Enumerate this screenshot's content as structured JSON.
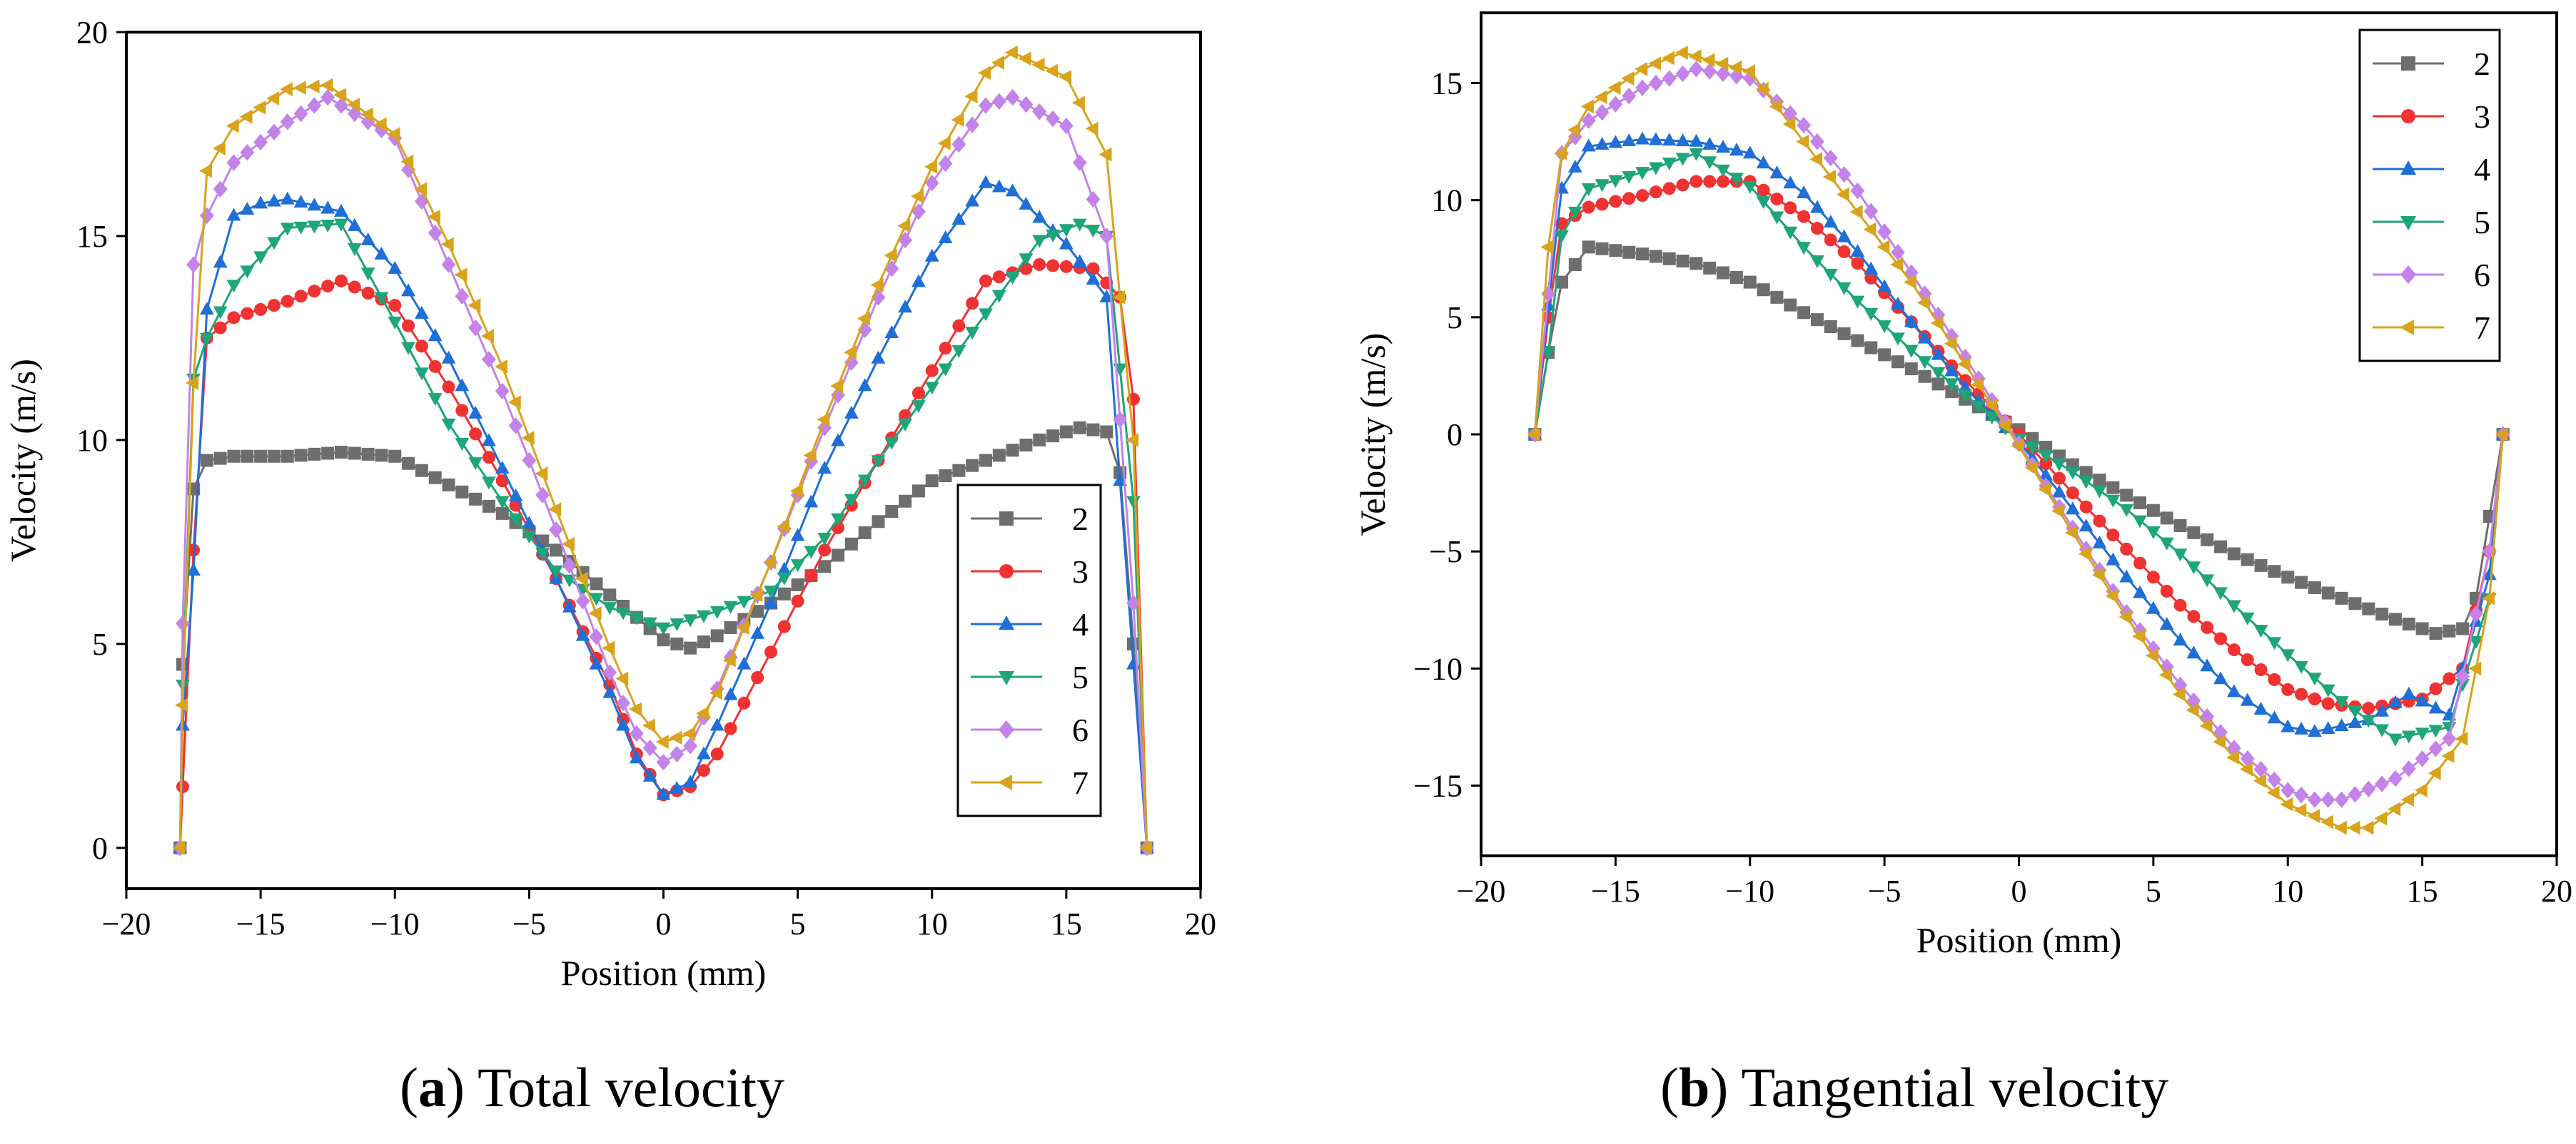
{
  "figure": {
    "subfigures": [
      {
        "tag": "a",
        "title": "Total velocity"
      },
      {
        "tag": "b",
        "title": "Tangential velocity"
      }
    ]
  },
  "chart_data": [
    {
      "type": "line",
      "title": "Total velocity",
      "xlabel": "Position (mm)",
      "ylabel": "Velocity (m/s)",
      "xlim": [
        -20,
        20
      ],
      "ylim": [
        -1,
        20
      ],
      "xticks": [
        -20,
        -15,
        -10,
        -5,
        0,
        5,
        10,
        15,
        20
      ],
      "yticks": [
        0,
        5,
        10,
        15,
        20
      ],
      "legend_position": "center-right",
      "series": [
        {
          "name": "2",
          "color": "#6e6e6e",
          "marker": "square",
          "x": [
            -18,
            -17.9,
            -17.5,
            -17,
            -16,
            -14,
            -12,
            -10,
            -8,
            -6,
            -4,
            -2,
            0,
            1,
            2,
            4,
            6,
            8,
            10,
            12,
            14,
            15.5,
            16.5,
            17,
            17.5,
            18
          ],
          "y": [
            0,
            4.5,
            8.8,
            9.5,
            9.6,
            9.6,
            9.7,
            9.6,
            8.9,
            8.2,
            7.3,
            6.2,
            5.1,
            4.9,
            5.2,
            6.0,
            6.9,
            8.0,
            9.0,
            9.5,
            10.0,
            10.3,
            10.2,
            9.2,
            5.0,
            0
          ]
        },
        {
          "name": "3",
          "color": "#f03232",
          "marker": "circle",
          "x": [
            -18,
            -17.9,
            -17.5,
            -17,
            -16,
            -14,
            -12,
            -10,
            -8,
            -6,
            -4,
            -2,
            -1,
            0,
            1,
            2,
            4,
            6,
            8,
            10,
            12,
            14,
            16,
            17,
            17.5,
            18
          ],
          "y": [
            0,
            1.5,
            7.3,
            12.5,
            13.0,
            13.4,
            13.9,
            13.3,
            11.3,
            9.0,
            6.6,
            4.0,
            2.3,
            1.3,
            1.5,
            2.3,
            4.8,
            7.3,
            9.5,
            11.7,
            13.9,
            14.3,
            14.2,
            13.5,
            11.0,
            0
          ]
        },
        {
          "name": "4",
          "color": "#1f6fd6",
          "marker": "triangle-up",
          "x": [
            -18,
            -17.9,
            -17.5,
            -17,
            -16,
            -15,
            -14,
            -12,
            -10,
            -8,
            -6,
            -4,
            -2,
            -1,
            0,
            1,
            2,
            4,
            6,
            8,
            10,
            12,
            13,
            15,
            16.5,
            17.5,
            18
          ],
          "y": [
            0,
            3.0,
            6.8,
            13.2,
            15.5,
            15.8,
            15.9,
            15.6,
            14.2,
            12.0,
            9.3,
            6.6,
            3.8,
            2.2,
            1.3,
            1.6,
            3.0,
            6.0,
            9.3,
            12.0,
            14.5,
            16.3,
            16.1,
            14.8,
            13.5,
            4.5,
            0
          ]
        },
        {
          "name": "5",
          "color": "#1fa57a",
          "marker": "triangle-down",
          "x": [
            -18,
            -17.9,
            -17.5,
            -17,
            -16,
            -14,
            -12,
            -10,
            -8,
            -6,
            -4,
            -2,
            0,
            2,
            4,
            6,
            8,
            10,
            12,
            14,
            15.5,
            16.5,
            17.5,
            18
          ],
          "y": [
            0,
            4.0,
            11.5,
            12.5,
            13.8,
            15.2,
            15.3,
            12.9,
            10.4,
            8.5,
            6.8,
            5.9,
            5.4,
            5.8,
            6.3,
            7.6,
            9.5,
            11.3,
            13.1,
            14.9,
            15.3,
            15.0,
            8.5,
            0
          ]
        },
        {
          "name": "6",
          "color": "#c383e8",
          "marker": "diamond",
          "x": [
            -18,
            -17.9,
            -17.5,
            -17,
            -16,
            -14,
            -12.5,
            -10,
            -8,
            -6,
            -4,
            -2,
            -1,
            0,
            1,
            2,
            4,
            6,
            8,
            10,
            12,
            13,
            15,
            16.5,
            17.5,
            18
          ],
          "y": [
            0,
            5.5,
            14.3,
            15.5,
            16.8,
            17.8,
            18.4,
            17.4,
            14.3,
            11.2,
            7.8,
            4.3,
            2.8,
            2.1,
            2.5,
            3.9,
            7.0,
            10.3,
            13.5,
            16.3,
            18.2,
            18.4,
            17.7,
            15.0,
            6.0,
            0
          ]
        },
        {
          "name": "7",
          "color": "#d9a31b",
          "marker": "triangle-left",
          "x": [
            -18,
            -17.9,
            -17.5,
            -17,
            -16,
            -14,
            -12.5,
            -10,
            -8,
            -6,
            -4,
            -2,
            -1,
            0,
            1,
            2,
            4,
            6,
            8,
            10,
            12,
            13,
            15,
            16.5,
            17.5,
            18
          ],
          "y": [
            0,
            3.5,
            11.4,
            16.6,
            17.7,
            18.6,
            18.7,
            17.5,
            14.8,
            11.8,
            8.3,
            4.9,
            3.4,
            2.6,
            2.8,
            3.8,
            7.0,
            10.5,
            13.8,
            16.7,
            19.0,
            19.5,
            18.9,
            17.0,
            10.0,
            0
          ]
        }
      ]
    },
    {
      "type": "line",
      "title": "Tangential velocity",
      "xlabel": "Position (mm)",
      "ylabel": "Velocity (m/s)",
      "xlim": [
        -20,
        20
      ],
      "ylim": [
        -18,
        18
      ],
      "xticks": [
        -20,
        -15,
        -10,
        -5,
        0,
        5,
        10,
        15,
        20
      ],
      "yticks": [
        -15,
        -10,
        -5,
        0,
        5,
        10,
        15
      ],
      "legend_position": "top-right",
      "series": [
        {
          "name": "2",
          "color": "#6e6e6e",
          "marker": "square",
          "x": [
            -18,
            -17.5,
            -17,
            -16,
            -14,
            -12,
            -10,
            -8,
            -6,
            -4,
            -2,
            0,
            2,
            4,
            6,
            8,
            10,
            12,
            14,
            15.5,
            16.5,
            17,
            17.5,
            18
          ],
          "y": [
            0,
            3.5,
            6.5,
            8.0,
            7.7,
            7.3,
            6.5,
            5.2,
            4.0,
            2.8,
            1.5,
            0.2,
            -1.3,
            -2.6,
            -3.9,
            -5.1,
            -6.1,
            -7.0,
            -7.9,
            -8.5,
            -8.3,
            -7.0,
            -3.5,
            0
          ]
        },
        {
          "name": "3",
          "color": "#f03232",
          "marker": "circle",
          "x": [
            -18,
            -17.5,
            -17,
            -16,
            -14,
            -12,
            -10,
            -8,
            -6,
            -4,
            -2,
            0,
            2,
            4,
            6,
            8,
            10,
            11.5,
            13,
            15,
            16.5,
            17.5,
            18
          ],
          "y": [
            0,
            5.0,
            9.0,
            9.7,
            10.2,
            10.8,
            10.8,
            9.3,
            7.3,
            4.8,
            2.3,
            0.0,
            -2.5,
            -4.9,
            -7.3,
            -9.2,
            -10.9,
            -11.5,
            -11.7,
            -11.3,
            -10.0,
            -5.0,
            0
          ]
        },
        {
          "name": "4",
          "color": "#1f6fd6",
          "marker": "triangle-up",
          "x": [
            -18,
            -17.5,
            -17,
            -16,
            -14,
            -12,
            -10,
            -8,
            -6,
            -4,
            -2,
            0,
            2,
            4,
            6,
            8,
            10,
            11,
            13,
            14.5,
            16,
            17.5,
            18
          ],
          "y": [
            0,
            5.5,
            10.5,
            12.3,
            12.6,
            12.5,
            12.0,
            10.3,
            7.8,
            4.8,
            2.0,
            -0.3,
            -3.2,
            -6.1,
            -8.8,
            -11.0,
            -12.5,
            -12.7,
            -12.2,
            -11.1,
            -12.0,
            -6.0,
            0
          ]
        },
        {
          "name": "5",
          "color": "#1fa57a",
          "marker": "triangle-down",
          "x": [
            -18,
            -17.5,
            -17,
            -16,
            -14,
            -12,
            -10,
            -8,
            -6,
            -4,
            -2,
            0,
            2,
            4,
            6,
            8,
            10,
            12,
            14,
            16,
            17.5,
            18
          ],
          "y": [
            0,
            3.5,
            8.5,
            10.5,
            11.2,
            12.0,
            10.6,
            8.0,
            5.7,
            3.6,
            1.7,
            -0.2,
            -1.6,
            -3.2,
            -5.1,
            -7.3,
            -9.4,
            -11.4,
            -13.0,
            -12.5,
            -7.0,
            0
          ]
        },
        {
          "name": "6",
          "color": "#c383e8",
          "marker": "diamond",
          "x": [
            -18,
            -17.5,
            -17,
            -16,
            -14,
            -12,
            -10,
            -8,
            -6,
            -4,
            -2,
            0,
            2,
            4,
            6,
            8,
            10,
            11,
            12,
            14,
            16,
            17.5,
            18
          ],
          "y": [
            0,
            6.0,
            12.0,
            13.4,
            14.8,
            15.6,
            15.2,
            13.2,
            10.4,
            6.9,
            3.3,
            -0.4,
            -4.0,
            -7.6,
            -10.7,
            -13.4,
            -15.2,
            -15.6,
            -15.6,
            -14.7,
            -13.0,
            -5.0,
            0
          ]
        },
        {
          "name": "7",
          "color": "#d9a31b",
          "marker": "triangle-left",
          "x": [
            -18,
            -17.5,
            -17,
            -16,
            -14,
            -12.5,
            -10,
            -8,
            -6,
            -4,
            -2,
            0,
            2,
            4,
            6,
            8,
            10,
            12,
            13,
            15,
            16.5,
            17.5,
            18
          ],
          "y": [
            0,
            8.0,
            12.0,
            14.0,
            15.6,
            16.3,
            15.5,
            12.5,
            9.5,
            6.5,
            3.0,
            -0.5,
            -4.2,
            -7.8,
            -11.1,
            -13.8,
            -15.8,
            -16.8,
            -16.8,
            -15.2,
            -13.0,
            -7.0,
            0
          ]
        }
      ]
    }
  ]
}
